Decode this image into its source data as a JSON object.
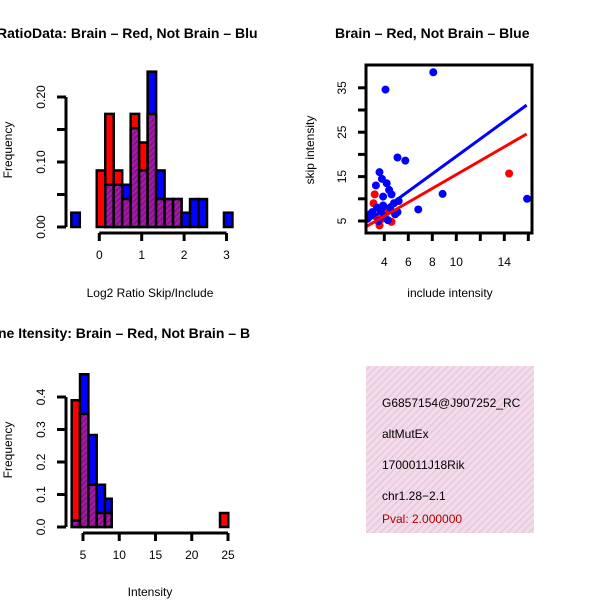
{
  "colors": {
    "red": "#ff0000",
    "blue": "#0000ff",
    "purple": "#a020a0",
    "pink": "#f8d8f0",
    "pval": "#b00000"
  },
  "chart_data": [
    {
      "type": "bar",
      "title": "RatioData: Brain – Red, Not Brain – Blu",
      "xlabel": "Log2 Ratio Skip/Include",
      "ylabel": "Frequency",
      "xticks": [
        "0",
        "1",
        "2",
        "3"
      ],
      "yticks": [
        "0.00",
        "0.10",
        "0.20"
      ],
      "xlim": [
        -0.65,
        3.05
      ],
      "ylim": [
        0,
        0.24
      ],
      "bins": [
        {
          "x0": -0.66,
          "x1": -0.46,
          "red": 0,
          "blue": 0.022
        },
        {
          "x0": -0.06,
          "x1": 0.14,
          "red": 0.087,
          "blue": 0
        },
        {
          "x0": 0.14,
          "x1": 0.34,
          "red": 0.174,
          "blue": 0.065
        },
        {
          "x0": 0.34,
          "x1": 0.54,
          "red": 0.087,
          "blue": 0.065
        },
        {
          "x0": 0.54,
          "x1": 0.74,
          "red": 0.043,
          "blue": 0.065
        },
        {
          "x0": 0.74,
          "x1": 0.94,
          "red": 0.174,
          "blue": 0.152
        },
        {
          "x0": 0.94,
          "x1": 1.14,
          "red": 0.13,
          "blue": 0.087
        },
        {
          "x0": 1.14,
          "x1": 1.34,
          "red": 0.174,
          "blue": 0.239
        },
        {
          "x0": 1.34,
          "x1": 1.54,
          "red": 0.043,
          "blue": 0.087
        },
        {
          "x0": 1.54,
          "x1": 1.74,
          "red": 0.043,
          "blue": 0.043
        },
        {
          "x0": 1.74,
          "x1": 1.94,
          "red": 0.043,
          "blue": 0.043
        },
        {
          "x0": 1.94,
          "x1": 2.14,
          "red": 0,
          "blue": 0.022
        },
        {
          "x0": 2.14,
          "x1": 2.34,
          "red": 0,
          "blue": 0.043
        },
        {
          "x0": 2.34,
          "x1": 2.54,
          "red": 0,
          "blue": 0.043
        },
        {
          "x0": 2.94,
          "x1": 3.14,
          "red": 0,
          "blue": 0.022
        }
      ]
    },
    {
      "type": "scatter",
      "title": "Brain – Red, Not Brain – Blue",
      "xlabel": "include intensity",
      "ylabel": "skip intensity",
      "xticks": [
        4,
        6,
        8,
        10,
        12,
        14,
        16
      ],
      "xticklabels": [
        "4",
        "6",
        "8",
        "10",
        "",
        "14",
        ""
      ],
      "yticks": [
        5,
        10,
        15,
        20,
        25,
        30,
        35
      ],
      "yticklabels": [
        "5",
        "",
        "15",
        "",
        "25",
        "",
        "35"
      ],
      "xlim": [
        2.47,
        15.86
      ],
      "ylim": [
        2.3,
        40.1
      ],
      "red": [
        [
          14.4,
          15.7
        ],
        [
          3.2,
          11
        ],
        [
          3.1,
          9
        ],
        [
          3.6,
          4
        ],
        [
          3.3,
          6
        ],
        [
          4.6,
          4.8
        ],
        [
          3.8,
          5.5
        ],
        [
          4.2,
          7
        ]
      ],
      "blue": [
        [
          8.08,
          38.5
        ],
        [
          4.1,
          34.6
        ],
        [
          5.1,
          19.3
        ],
        [
          5.75,
          18.6
        ],
        [
          6.83,
          7.6
        ],
        [
          8.86,
          11.1
        ],
        [
          15.9,
          10
        ],
        [
          3.6,
          16
        ],
        [
          3.3,
          13
        ],
        [
          3.8,
          14.5
        ],
        [
          4.2,
          13.5
        ],
        [
          4.4,
          12
        ],
        [
          3.9,
          10.5
        ],
        [
          4.6,
          11
        ],
        [
          4.8,
          9
        ],
        [
          5.2,
          9.5
        ],
        [
          3.0,
          7
        ],
        [
          2.8,
          6.5
        ],
        [
          3.4,
          8
        ],
        [
          3.7,
          7.2
        ],
        [
          4.0,
          6
        ],
        [
          4.3,
          5.2
        ],
        [
          4.9,
          6.5
        ],
        [
          5.1,
          7
        ],
        [
          2.6,
          5.5
        ],
        [
          3.5,
          5
        ],
        [
          4.5,
          8
        ],
        [
          3.9,
          8.5
        ]
      ],
      "lines": [
        {
          "color": "blue",
          "slope": 1.97,
          "intercept": -0.15
        },
        {
          "color": "red",
          "slope": 1.56,
          "intercept": -0.15
        }
      ]
    },
    {
      "type": "bar",
      "title": "ne Itensity: Brain – Red, Not Brain – B",
      "xlabel": "Intensity",
      "ylabel": "Frequency",
      "xticks": [
        "5",
        "10",
        "15",
        "20",
        "25"
      ],
      "yticks": [
        "0.0",
        "0.1",
        "0.2",
        "0.3",
        "0.4"
      ],
      "xlim": [
        3.4,
        25.1
      ],
      "ylim": [
        0,
        0.47
      ],
      "bins": [
        {
          "x0": 3.44,
          "x1": 4.59,
          "red": 0.39,
          "blue": 0.02
        },
        {
          "x0": 4.59,
          "x1": 5.74,
          "red": 0.348,
          "blue": 0.47
        },
        {
          "x0": 5.74,
          "x1": 6.89,
          "red": 0.13,
          "blue": 0.283
        },
        {
          "x0": 6.89,
          "x1": 8.03,
          "red": 0.043,
          "blue": 0.13
        },
        {
          "x0": 8.03,
          "x1": 8.96,
          "red": 0.043,
          "blue": 0.087
        },
        {
          "x0": 23.9,
          "x1": 25.04,
          "red": 0.043,
          "blue": 0
        }
      ]
    }
  ],
  "info": {
    "id": "G6857154@J907252_RC",
    "type": "altMutEx",
    "gene": "1700011J18Rik",
    "location": "chr1.28−2.1",
    "pval": "Pval: 2.000000"
  }
}
